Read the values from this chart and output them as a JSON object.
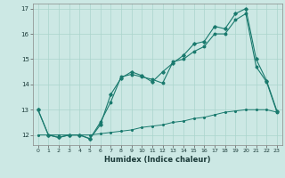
{
  "xlabel": "Humidex (Indice chaleur)",
  "bg_color": "#cce8e4",
  "grid_color": "#aad4cc",
  "line_color": "#1a7a6e",
  "xlim": [
    -0.5,
    23.5
  ],
  "ylim": [
    11.6,
    17.2
  ],
  "yticks": [
    12,
    13,
    14,
    15,
    16,
    17
  ],
  "xticks": [
    0,
    1,
    2,
    3,
    4,
    5,
    6,
    7,
    8,
    9,
    10,
    11,
    12,
    13,
    14,
    15,
    16,
    17,
    18,
    19,
    20,
    21,
    22,
    23
  ],
  "line1_x": [
    0,
    1,
    2,
    3,
    4,
    5,
    6,
    7,
    8,
    9,
    10,
    11,
    12,
    13,
    14,
    15,
    16,
    17,
    18,
    19,
    20,
    21,
    22,
    23
  ],
  "line1_y": [
    13.0,
    12.0,
    11.9,
    12.0,
    12.0,
    11.85,
    12.5,
    13.3,
    14.3,
    14.4,
    14.3,
    14.2,
    14.05,
    14.9,
    15.0,
    15.3,
    15.5,
    16.0,
    16.0,
    16.55,
    16.8,
    14.7,
    14.1,
    12.9
  ],
  "line2_x": [
    0,
    1,
    2,
    3,
    4,
    5,
    6,
    7,
    8,
    9,
    10,
    11,
    12,
    13,
    14,
    15,
    16,
    17,
    18,
    19,
    20,
    21,
    22,
    23
  ],
  "line2_y": [
    13.0,
    12.0,
    11.9,
    12.0,
    12.0,
    11.85,
    12.4,
    13.6,
    14.25,
    14.5,
    14.35,
    14.1,
    14.5,
    14.85,
    15.15,
    15.6,
    15.7,
    16.3,
    16.2,
    16.8,
    17.0,
    15.0,
    14.15,
    12.95
  ],
  "line3_x": [
    0,
    1,
    2,
    3,
    4,
    5,
    6,
    7,
    8,
    9,
    10,
    11,
    12,
    13,
    14,
    15,
    16,
    17,
    18,
    19,
    20,
    21,
    22,
    23
  ],
  "line3_y": [
    12.0,
    12.0,
    12.0,
    12.0,
    12.0,
    12.0,
    12.05,
    12.1,
    12.15,
    12.2,
    12.3,
    12.35,
    12.4,
    12.5,
    12.55,
    12.65,
    12.7,
    12.8,
    12.9,
    12.95,
    13.0,
    13.0,
    13.0,
    12.9
  ]
}
